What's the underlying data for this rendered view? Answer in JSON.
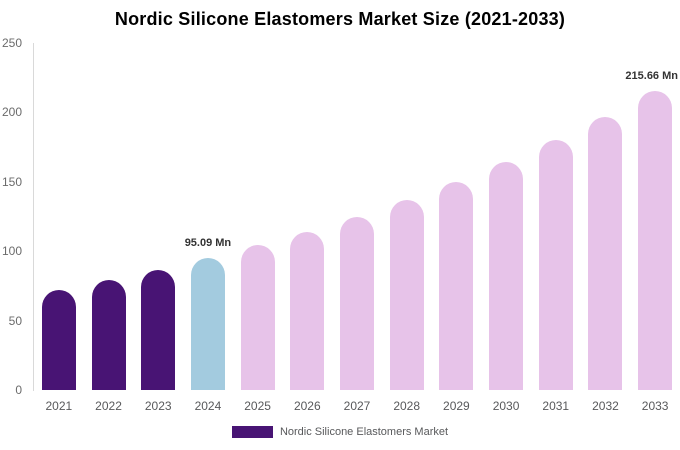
{
  "chart_data": {
    "type": "bar",
    "title": "Nordic Silicone Elastomers Market Size (2021-2033)",
    "xlabel": "",
    "ylabel": "",
    "unit": "Mn",
    "categories": [
      "2021",
      "2022",
      "2023",
      "2024",
      "2025",
      "2026",
      "2027",
      "2028",
      "2029",
      "2030",
      "2031",
      "2032",
      "2033"
    ],
    "values": [
      72.4,
      79.3,
      86.8,
      95.09,
      104.2,
      114.1,
      124.9,
      136.9,
      149.9,
      164.2,
      179.8,
      196.9,
      215.66
    ],
    "ylim": [
      0,
      250
    ],
    "yticks": [
      0,
      50,
      100,
      150,
      200,
      250
    ],
    "grid": false,
    "bar_colors": [
      "#481474",
      "#481474",
      "#481474",
      "#a3cbdf",
      "#e7c3e9",
      "#e7c3e9",
      "#e7c3e9",
      "#e7c3e9",
      "#e7c3e9",
      "#e7c3e9",
      "#e7c3e9",
      "#e7c3e9",
      "#e7c3e9"
    ],
    "data_labels": [
      {
        "category": "2024",
        "text": "95.09 Mn"
      },
      {
        "category": "2033",
        "text": "215.66 Mn"
      }
    ],
    "legend": [
      {
        "label": "Nordic Silicone Elastomers Market",
        "color": "#481474"
      }
    ],
    "legend_position": "bottom"
  },
  "colors": {
    "purple": "#481474",
    "blue": "#a3cbdf",
    "pink": "#e7c3e9",
    "axis_line": "#d9d9d9",
    "tick_text": "#6b6b6b",
    "category_text": "#58595b",
    "data_label_text": "#333333"
  }
}
